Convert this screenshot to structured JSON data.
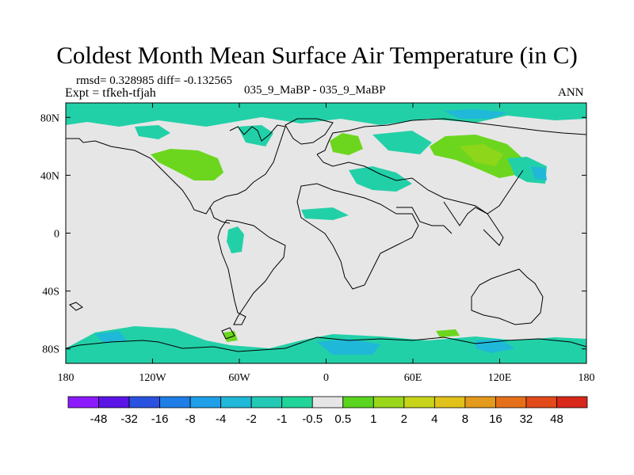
{
  "title": "Coldest Month Mean Surface Air Temperature (in C)",
  "stats": "rmsd= 0.328985  diff= -0.132565",
  "expt": "Expt = tfkeh-tfjah",
  "subtitle": "035_9_MaBP - 035_9_MaBP",
  "season": "ANN",
  "x_ticks": [
    {
      "label": "180",
      "lon": -180
    },
    {
      "label": "120W",
      "lon": -120
    },
    {
      "label": "60W",
      "lon": -60
    },
    {
      "label": "0",
      "lon": 0
    },
    {
      "label": "60E",
      "lon": 60
    },
    {
      "label": "120E",
      "lon": 120
    },
    {
      "label": "180",
      "lon": 180
    }
  ],
  "y_ticks": [
    {
      "label": "80N",
      "lat": 80
    },
    {
      "label": "40N",
      "lat": 40
    },
    {
      "label": "0",
      "lat": 0
    },
    {
      "label": "40S",
      "lat": -40
    },
    {
      "label": "80S",
      "lat": -80
    }
  ],
  "colorbar": {
    "labels": [
      "-48",
      "-32",
      "-16",
      "-8",
      "-4",
      "-2",
      "-1",
      "-0.5",
      "0.5",
      "1",
      "2",
      "4",
      "8",
      "16",
      "32",
      "48"
    ],
    "colors": [
      "#8c1aff",
      "#5a14e6",
      "#2a52e0",
      "#1e7ee6",
      "#1f9fe8",
      "#20b8d8",
      "#22c9b4",
      "#21d59a",
      "#e6e6e6",
      "#5ad41e",
      "#9ad61a",
      "#c8d41a",
      "#e0c21a",
      "#e49a1a",
      "#e6701a",
      "#e24a1a",
      "#d8281a"
    ]
  }
}
